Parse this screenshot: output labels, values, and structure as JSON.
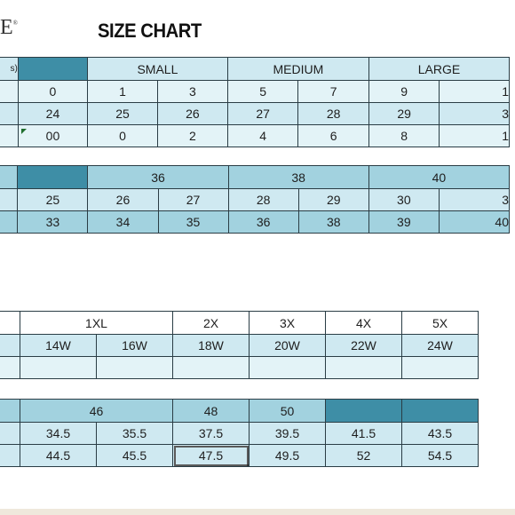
{
  "header": {
    "logo_text": "E",
    "logo_mark": "®",
    "title": "SIZE CHART"
  },
  "colors": {
    "dark": "#3e8ea6",
    "mid": "#a2d2df",
    "light": "#cfe9f1",
    "pale": "#e3f3f7",
    "border": "#2a3d45"
  },
  "table1": {
    "label_frag": "s)",
    "groups": [
      "SMALL",
      "MEDIUM",
      "LARGE"
    ],
    "rows": [
      [
        "0",
        "1",
        "3",
        "5",
        "7",
        "9",
        "1"
      ],
      [
        "24",
        "25",
        "26",
        "27",
        "28",
        "29",
        "3"
      ],
      [
        "00",
        "0",
        "2",
        "4",
        "6",
        "8",
        "1"
      ]
    ]
  },
  "table2": {
    "groups": [
      "36",
      "38",
      "40"
    ],
    "rows": [
      [
        "25",
        "26",
        "27",
        "28",
        "29",
        "30",
        "3"
      ],
      [
        "33",
        "34",
        "35",
        "36",
        "38",
        "39",
        "40"
      ]
    ]
  },
  "table3": {
    "groups": [
      "1XL",
      "2X",
      "3X",
      "4X",
      "5X"
    ],
    "row": [
      "14W",
      "16W",
      "18W",
      "20W",
      "22W",
      "24W"
    ]
  },
  "table4": {
    "groups": [
      "46",
      "48",
      "50"
    ],
    "rows": [
      [
        "34.5",
        "35.5",
        "37.5",
        "39.5",
        "41.5",
        "43.5"
      ],
      [
        "44.5",
        "45.5",
        "47.5",
        "49.5",
        "52",
        "54.5"
      ]
    ]
  }
}
